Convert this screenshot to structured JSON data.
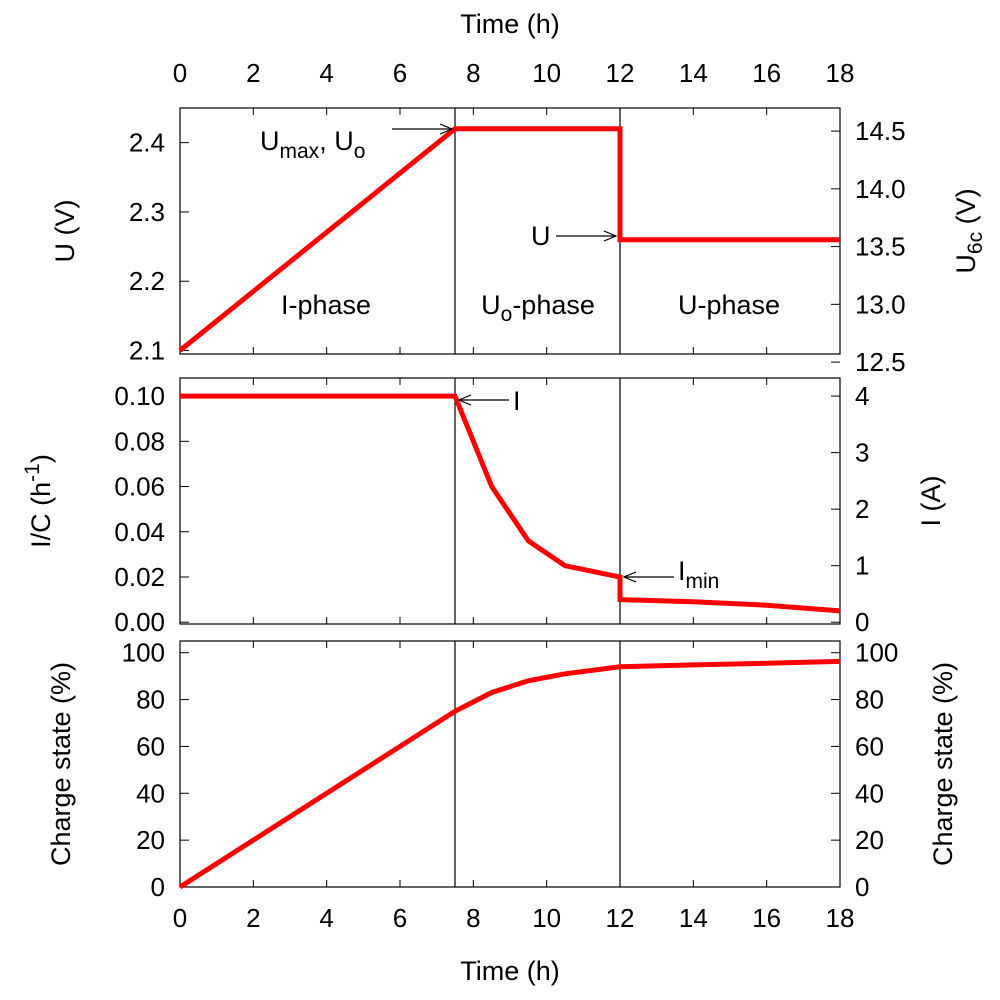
{
  "chart_data": {
    "type": "line",
    "colors": {
      "series": "#ff0000",
      "axes": "#000000",
      "background": "#ffffff"
    },
    "x_axis": {
      "label": "Time (h)",
      "range": [
        0,
        18
      ],
      "ticks": [
        "0",
        "2",
        "4",
        "6",
        "8",
        "10",
        "12",
        "14",
        "16",
        "18"
      ],
      "tick_values": [
        0,
        2,
        4,
        6,
        8,
        10,
        12,
        14,
        16,
        18
      ]
    },
    "phase_boundaries": [
      7.5,
      12
    ],
    "panels": [
      {
        "id": "voltage",
        "left_axis": {
          "label": "U (V)",
          "range": [
            2.095,
            2.45
          ],
          "ticks": [
            "2.1",
            "2.2",
            "2.3",
            "2.4"
          ],
          "tick_values": [
            2.1,
            2.2,
            2.3,
            2.4
          ]
        },
        "right_axis": {
          "label_main": "U",
          "label_sub": "6c",
          "label_tail": " (V)",
          "range": [
            12.57,
            14.7
          ],
          "ticks": [
            "12.5",
            "13.0",
            "13.5",
            "14.0",
            "14.5"
          ],
          "tick_values": [
            12.5,
            13.0,
            13.5,
            14.0,
            14.5
          ]
        },
        "series": [
          {
            "name": "U",
            "x": [
              0,
              7.5,
              12,
              12,
              18
            ],
            "y": [
              2.1,
              2.42,
              2.42,
              2.26,
              2.26
            ]
          }
        ],
        "phase_labels": {
          "i_phase": "I-phase",
          "uo_phase_main": "U",
          "uo_phase_sub": "o",
          "uo_phase_tail": "-phase",
          "u_phase": "U-phase"
        },
        "annotations": {
          "umax_main": "U",
          "umax_sub": "max",
          "umax_sep": ", U",
          "umax_sub2": "o",
          "u": "U"
        }
      },
      {
        "id": "current",
        "left_axis": {
          "label_main": "I/C (h",
          "label_sup": "-1",
          "label_tail": ")",
          "range": [
            -0.0008,
            0.108
          ],
          "ticks": [
            "0.00",
            "0.02",
            "0.04",
            "0.06",
            "0.08",
            "0.10"
          ],
          "tick_values": [
            0,
            0.02,
            0.04,
            0.06,
            0.08,
            0.1
          ]
        },
        "right_axis": {
          "label": "I (A)",
          "range": [
            -0.032,
            4.32
          ],
          "ticks": [
            "0",
            "1",
            "2",
            "3",
            "4"
          ],
          "tick_values": [
            0,
            1,
            2,
            3,
            4
          ]
        },
        "series": [
          {
            "name": "I",
            "x": [
              0,
              7.5,
              8.5,
              9.5,
              10.5,
              12,
              12,
              14,
              16,
              18
            ],
            "y": [
              0.1,
              0.1,
              0.06,
              0.036,
              0.025,
              0.02,
              0.01,
              0.009,
              0.0075,
              0.005
            ]
          }
        ],
        "annotations": {
          "i": "I",
          "imin_main": "I",
          "imin_sub": "min"
        }
      },
      {
        "id": "charge",
        "left_axis": {
          "label": "Charge state (%)",
          "range": [
            0,
            105
          ],
          "ticks": [
            "0",
            "20",
            "40",
            "60",
            "80",
            "100"
          ],
          "tick_values": [
            0,
            20,
            40,
            60,
            80,
            100
          ]
        },
        "right_axis": {
          "label": "Charge state (%)",
          "range": [
            0,
            105
          ],
          "ticks": [
            "0",
            "20",
            "40",
            "60",
            "80",
            "100"
          ],
          "tick_values": [
            0,
            20,
            40,
            60,
            80,
            100
          ]
        },
        "series": [
          {
            "name": "Charge state",
            "x": [
              0,
              7.5,
              8.5,
              9.5,
              10.5,
              12,
              14,
              16,
              18
            ],
            "y": [
              0,
              75,
              83,
              88,
              91,
              94,
              94.8,
              95.5,
              96.3
            ]
          }
        ]
      }
    ]
  }
}
